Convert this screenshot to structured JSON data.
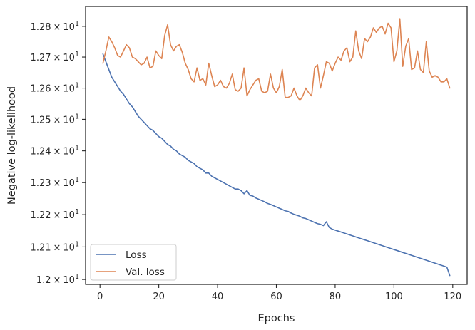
{
  "chart_data": {
    "type": "line",
    "xlabel": "Epochs",
    "ylabel": "Negative log-likelihood",
    "xlim": [
      -4.9,
      124.9
    ],
    "ylim": [
      11.985,
      12.865
    ],
    "yscale": "log",
    "grid": false,
    "legend_position": "lower-left",
    "x_ticks": [
      {
        "value": 0,
        "label": "0"
      },
      {
        "value": 20,
        "label": "20"
      },
      {
        "value": 40,
        "label": "40"
      },
      {
        "value": 60,
        "label": "60"
      },
      {
        "value": 80,
        "label": "80"
      },
      {
        "value": 100,
        "label": "100"
      },
      {
        "value": 120,
        "label": "120"
      }
    ],
    "y_ticks": [
      {
        "value": 12.0,
        "mantissa": "1.2",
        "times": "×",
        "base": "10",
        "exp": "1"
      },
      {
        "value": 12.1,
        "mantissa": "1.21",
        "times": "×",
        "base": "10",
        "exp": "1"
      },
      {
        "value": 12.2,
        "mantissa": "1.22",
        "times": "×",
        "base": "10",
        "exp": "1"
      },
      {
        "value": 12.3,
        "mantissa": "1.23",
        "times": "×",
        "base": "10",
        "exp": "1"
      },
      {
        "value": 12.4,
        "mantissa": "1.24",
        "times": "×",
        "base": "10",
        "exp": "1"
      },
      {
        "value": 12.5,
        "mantissa": "1.25",
        "times": "×",
        "base": "10",
        "exp": "1"
      },
      {
        "value": 12.6,
        "mantissa": "1.26",
        "times": "×",
        "base": "10",
        "exp": "1"
      },
      {
        "value": 12.7,
        "mantissa": "1.27",
        "times": "×",
        "base": "10",
        "exp": "1"
      },
      {
        "value": 12.8,
        "mantissa": "1.28",
        "times": "×",
        "base": "10",
        "exp": "1"
      }
    ],
    "series": [
      {
        "name": "Loss",
        "color": "#4c72b0",
        "x_start": 1,
        "x_step": 1,
        "values": [
          12.71,
          12.685,
          12.66,
          12.635,
          12.62,
          12.605,
          12.59,
          12.58,
          12.565,
          12.55,
          12.54,
          12.525,
          12.51,
          12.5,
          12.49,
          12.48,
          12.47,
          12.465,
          12.455,
          12.445,
          12.44,
          12.43,
          12.42,
          12.415,
          12.405,
          12.4,
          12.39,
          12.385,
          12.38,
          12.37,
          12.365,
          12.36,
          12.35,
          12.345,
          12.34,
          12.33,
          12.33,
          12.32,
          12.315,
          12.31,
          12.305,
          12.3,
          12.295,
          12.29,
          12.285,
          12.28,
          12.28,
          12.275,
          12.265,
          12.275,
          12.26,
          12.258,
          12.252,
          12.248,
          12.244,
          12.24,
          12.235,
          12.232,
          12.228,
          12.224,
          12.22,
          12.216,
          12.212,
          12.21,
          12.205,
          12.201,
          12.198,
          12.195,
          12.19,
          12.188,
          12.184,
          12.18,
          12.176,
          12.172,
          12.17,
          12.166,
          12.178,
          12.16,
          12.155,
          12.152,
          12.149,
          12.146,
          12.143,
          12.14,
          12.137,
          12.134,
          12.131,
          12.128,
          12.125,
          12.122,
          12.119,
          12.116,
          12.113,
          12.11,
          12.107,
          12.104,
          12.101,
          12.098,
          12.095,
          12.092,
          12.089,
          12.086,
          12.083,
          12.08,
          12.077,
          12.074,
          12.071,
          12.068,
          12.065,
          12.062,
          12.059,
          12.056,
          12.053,
          12.05,
          12.047,
          12.044,
          12.041,
          12.038,
          12.012
        ]
      },
      {
        "name": "Val. loss",
        "color": "#dd8452",
        "x_start": 1,
        "x_step": 1,
        "values": [
          12.68,
          12.72,
          12.765,
          12.75,
          12.73,
          12.705,
          12.7,
          12.72,
          12.74,
          12.73,
          12.7,
          12.695,
          12.685,
          12.675,
          12.68,
          12.7,
          12.665,
          12.67,
          12.72,
          12.705,
          12.695,
          12.77,
          12.805,
          12.74,
          12.72,
          12.735,
          12.74,
          12.715,
          12.68,
          12.66,
          12.63,
          12.62,
          12.665,
          12.625,
          12.63,
          12.61,
          12.68,
          12.64,
          12.605,
          12.61,
          12.625,
          12.605,
          12.6,
          12.615,
          12.645,
          12.595,
          12.59,
          12.6,
          12.665,
          12.575,
          12.595,
          12.61,
          12.625,
          12.63,
          12.59,
          12.585,
          12.59,
          12.645,
          12.6,
          12.585,
          12.605,
          12.66,
          12.57,
          12.57,
          12.575,
          12.6,
          12.575,
          12.56,
          12.575,
          12.6,
          12.585,
          12.575,
          12.665,
          12.675,
          12.6,
          12.64,
          12.685,
          12.68,
          12.655,
          12.68,
          12.7,
          12.69,
          12.72,
          12.73,
          12.685,
          12.7,
          12.785,
          12.72,
          12.695,
          12.76,
          12.75,
          12.765,
          12.795,
          12.78,
          12.795,
          12.8,
          12.775,
          12.81,
          12.795,
          12.685,
          12.72,
          12.825,
          12.67,
          12.735,
          12.76,
          12.66,
          12.665,
          12.72,
          12.66,
          12.65,
          12.75,
          12.655,
          12.635,
          12.64,
          12.635,
          12.62,
          12.62,
          12.63,
          12.6
        ]
      }
    ]
  }
}
